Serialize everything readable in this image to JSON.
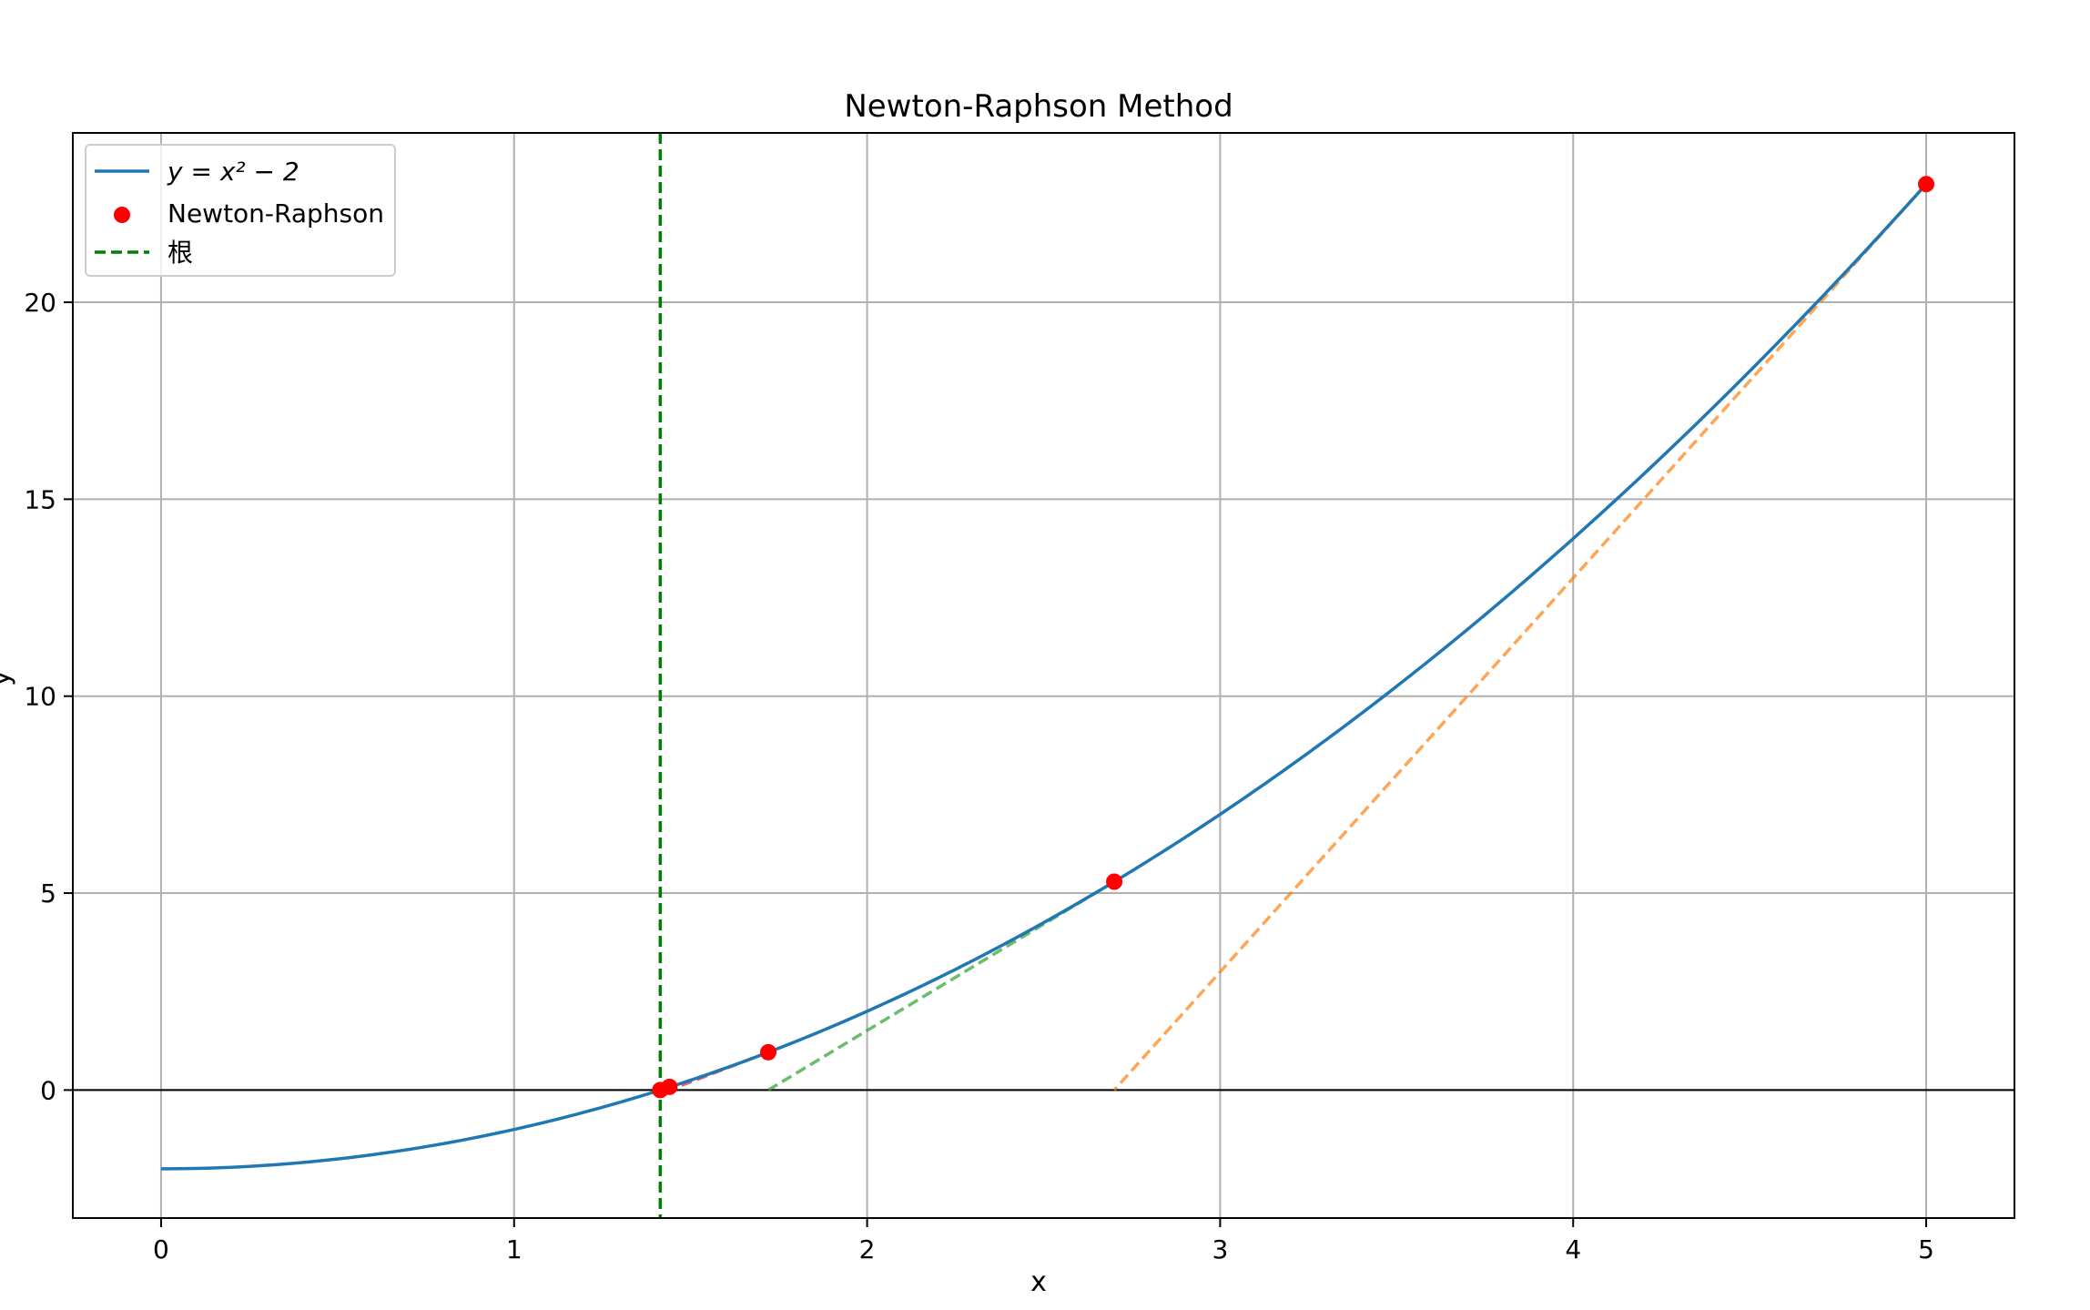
{
  "chart_data": {
    "type": "line",
    "title": "Newton-Raphson Method",
    "xlabel": "x",
    "ylabel": "y",
    "xlim": [
      -0.25,
      5.25
    ],
    "ylim": [
      -3.25,
      24.3
    ],
    "xticks": [
      0,
      1,
      2,
      3,
      4,
      5
    ],
    "yticks": [
      0,
      5,
      10,
      15,
      20
    ],
    "grid": true,
    "legend_position": "top-left",
    "function": {
      "name": "y = x² − 2",
      "color": "#1f77b4",
      "x_range": [
        0,
        5
      ]
    },
    "iterations": {
      "name": "Newton-Raphson",
      "color": "#ff0000",
      "points": [
        {
          "x": 5.0,
          "y": 23.0
        },
        {
          "x": 2.7,
          "y": 5.29
        },
        {
          "x": 1.72,
          "y": 0.96
        },
        {
          "x": 1.44,
          "y": 0.08
        },
        {
          "x": 1.414,
          "y": 0.0
        }
      ]
    },
    "tangents": [
      {
        "from": [
          5.0,
          23.0
        ],
        "to": [
          2.7,
          0
        ],
        "color": "#ff7f0e"
      },
      {
        "from": [
          2.7,
          5.29
        ],
        "to": [
          1.72,
          0
        ],
        "color": "#2ca02c"
      },
      {
        "from": [
          1.72,
          0.96
        ],
        "to": [
          1.44,
          0
        ],
        "color": "#d62728"
      },
      {
        "from": [
          1.44,
          0.08
        ],
        "to": [
          1.414,
          0
        ],
        "color": "#9467bd"
      }
    ],
    "root_line": {
      "name": "根",
      "x": 1.414,
      "color": "#008000"
    },
    "zero_line": {
      "y": 0,
      "color": "#000000"
    }
  }
}
